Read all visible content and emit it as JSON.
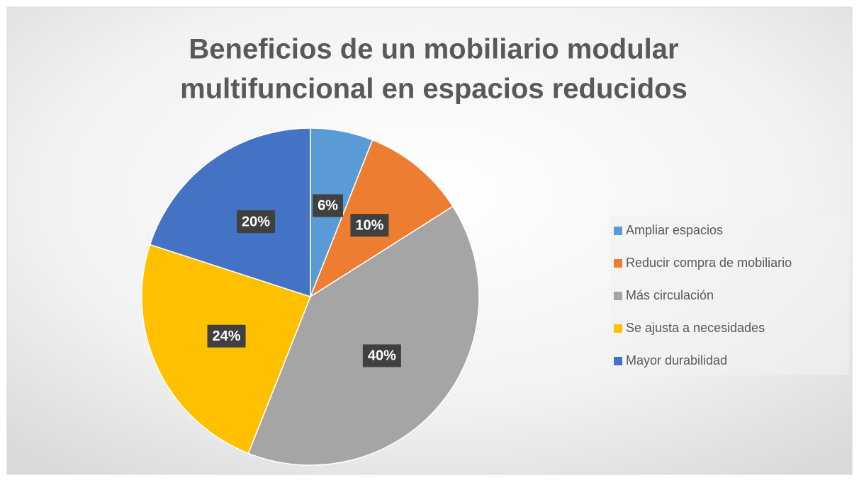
{
  "chart_data": {
    "type": "pie",
    "title": [
      "Beneficios de un mobiliario modular",
      "multifuncional en espacios reducidos"
    ],
    "categories": [
      "Ampliar espacios",
      "Reducir compra de mobiliario",
      "Más circulación",
      "Se ajusta a necesidades",
      "Mayor durabilidad"
    ],
    "values": [
      6,
      10,
      40,
      24,
      20
    ],
    "value_labels": [
      "6%",
      "10%",
      "40%",
      "24%",
      "20%"
    ],
    "colors": [
      "#5b9bd5",
      "#ed7d31",
      "#a5a5a5",
      "#ffc000",
      "#4472c4"
    ],
    "legend": "right"
  }
}
